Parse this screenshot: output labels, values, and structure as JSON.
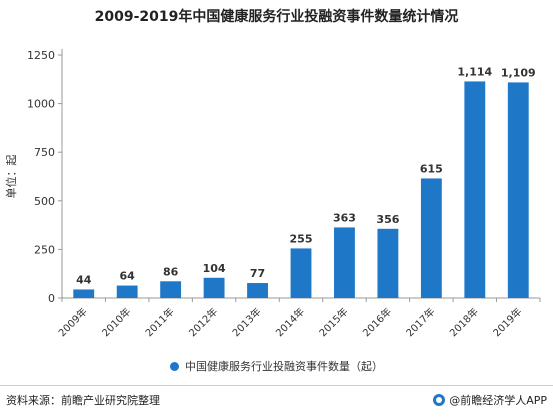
{
  "chart_data": {
    "type": "bar",
    "title": "2009-2019年中国健康服务行业投融资事件数量统计情况",
    "ylabel": "单位：起",
    "xlabel": "",
    "categories": [
      "2009年",
      "2010年",
      "2011年",
      "2012年",
      "2013年",
      "2014年",
      "2015年",
      "2016年",
      "2017年",
      "2018年",
      "2019年"
    ],
    "series": [
      {
        "name": "中国健康服务行业投融资事件数量（起）",
        "values": [
          44,
          64,
          86,
          104,
          77,
          255,
          363,
          356,
          615,
          1114,
          1109
        ]
      }
    ],
    "data_labels": [
      "44",
      "64",
      "86",
      "104",
      "77",
      "255",
      "363",
      "356",
      "615",
      "1,114",
      "1,109"
    ],
    "ylim": [
      0,
      1250
    ],
    "yticks": [
      0,
      250,
      500,
      750,
      1000,
      1250
    ],
    "grid": false,
    "legend_position": "bottom",
    "bar_color": "#1f77c8"
  },
  "footer": {
    "source": "资料来源：前瞻产业研究院整理",
    "brand": "@前瞻经济学人APP"
  },
  "colors": {
    "brand": "#1f77c8",
    "axis": "#999999",
    "text": "#333333"
  }
}
